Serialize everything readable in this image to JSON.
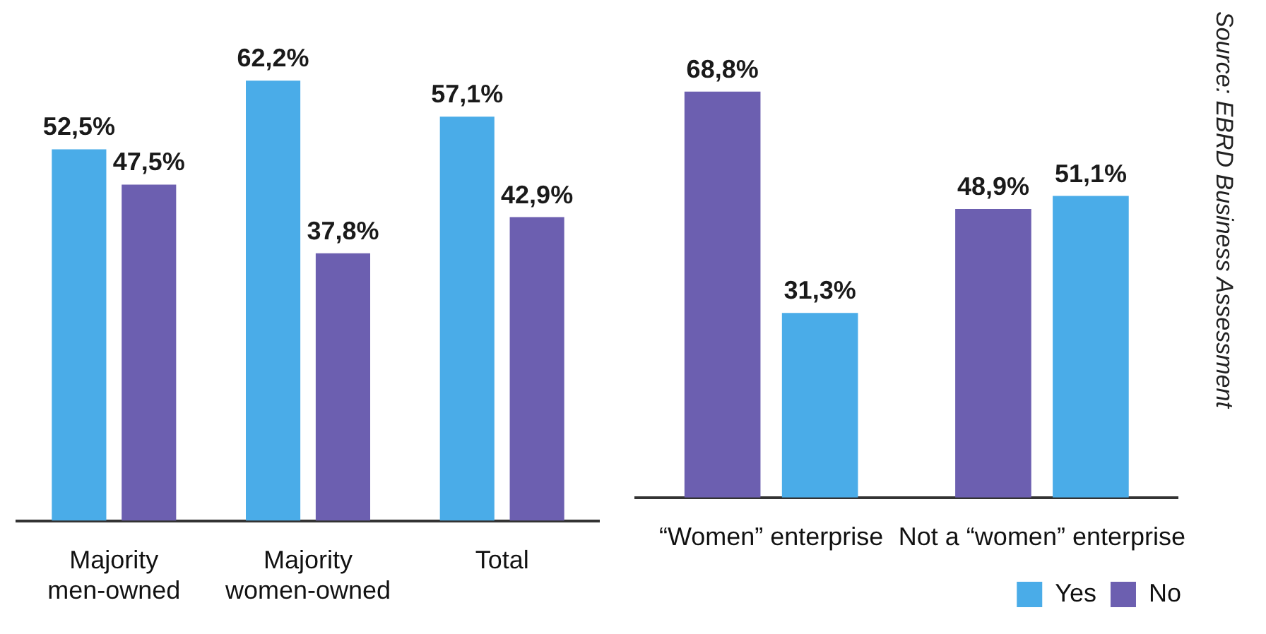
{
  "chart_data": [
    {
      "type": "bar",
      "categories": [
        "Majority\nmen-owned",
        "Majority\nwomen-owned",
        "Total"
      ],
      "series": [
        {
          "color": "#4aace8",
          "values": [
            52.5,
            62.2,
            57.1
          ],
          "value_labels": [
            "52,5%",
            "62,2%",
            "57,1%"
          ]
        },
        {
          "color": "#6c5fb0",
          "values": [
            47.5,
            37.8,
            42.9
          ],
          "value_labels": [
            "47,5%",
            "37,8%",
            "42,9%"
          ]
        }
      ]
    },
    {
      "type": "bar",
      "categories": [
        "“Women” enterprise",
        "Not a “women” enterprise"
      ],
      "series": [
        {
          "name": "No",
          "color": "#6c5fb0",
          "values": [
            68.8,
            48.9
          ],
          "value_labels": [
            "68,8%",
            "48,9%"
          ]
        },
        {
          "name": "Yes",
          "color": "#4aace8",
          "values": [
            31.3,
            51.1
          ],
          "value_labels": [
            "31,3%",
            "51,1%"
          ]
        }
      ],
      "legend": "bottom right",
      "annotations": [
        "Source: EBRD Business Assessment"
      ]
    }
  ]
}
